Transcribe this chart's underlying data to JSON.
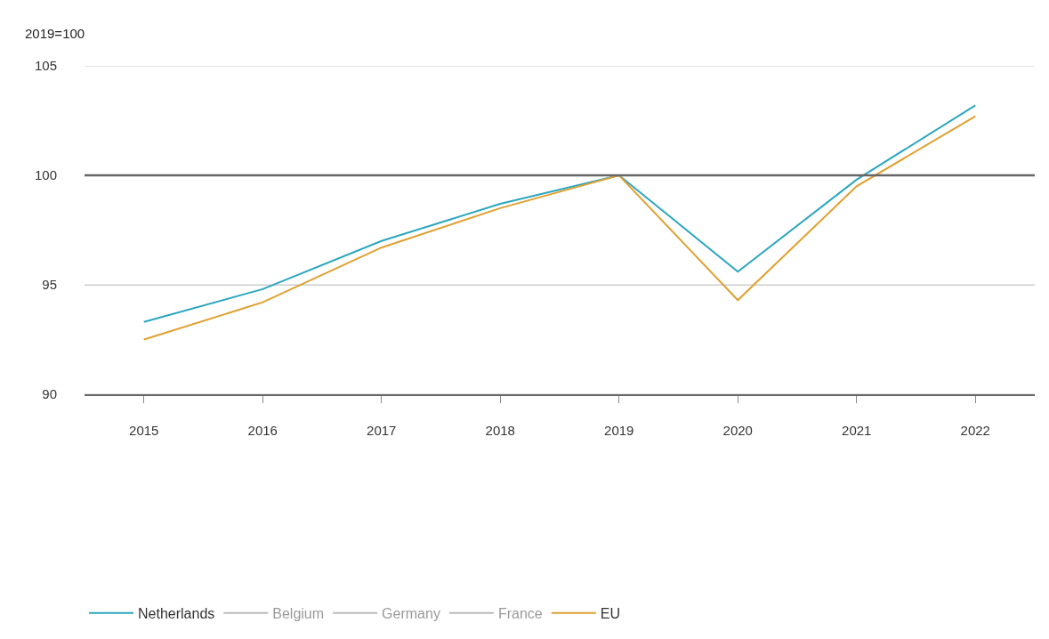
{
  "chart_data": {
    "type": "line",
    "ylabel": "2019=100",
    "categories": [
      "2015",
      "2016",
      "2017",
      "2018",
      "2019",
      "2020",
      "2021",
      "2022"
    ],
    "series": [
      {
        "name": "Netherlands",
        "color": "#2ba6bf",
        "values": [
          93.3,
          94.8,
          97.0,
          98.7,
          100,
          95.6,
          99.8,
          103.2
        ]
      },
      {
        "name": "Belgium",
        "color": "#777777",
        "values": [
          null,
          null,
          null,
          null,
          null,
          null,
          null,
          null
        ]
      },
      {
        "name": "Germany",
        "color": "#777777",
        "values": [
          null,
          null,
          null,
          null,
          null,
          null,
          null,
          null
        ]
      },
      {
        "name": "France",
        "color": "#777777",
        "values": [
          null,
          null,
          null,
          null,
          null,
          null,
          null,
          null
        ]
      },
      {
        "name": "EU",
        "color": "#e0a030",
        "values": [
          92.5,
          94.2,
          96.7,
          98.5,
          100,
          94.3,
          99.5,
          102.7
        ]
      }
    ],
    "ylim": [
      90,
      105
    ],
    "yticks": [
      90,
      95,
      100,
      105
    ],
    "grid": "y",
    "legend": "bottom",
    "marker": "none",
    "line_style": "solid",
    "ref_lines": [
      {
        "axis": "y",
        "value": 100,
        "color": "#666666"
      }
    ]
  }
}
